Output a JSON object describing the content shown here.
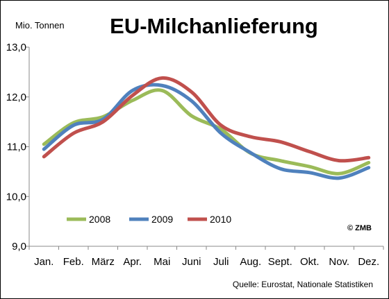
{
  "chart_data": {
    "type": "line",
    "title": "EU-Milchanlieferung",
    "ylabel": "Mio. Tonnen",
    "categories": [
      "Jan.",
      "Feb.",
      "März",
      "Apr.",
      "Mai",
      "Juni",
      "Juli",
      "Aug.",
      "Sept.",
      "Okt.",
      "Nov.",
      "Dez."
    ],
    "ylim": [
      9.0,
      13.0
    ],
    "yticks": [
      "9,0",
      "10,0",
      "11,0",
      "12,0",
      "13,0"
    ],
    "grid": false,
    "legend": "bottom-left",
    "series": [
      {
        "name": "2008",
        "color": "#9bbb59",
        "values": [
          11.05,
          11.48,
          11.6,
          11.93,
          12.13,
          11.62,
          11.35,
          10.87,
          10.72,
          10.6,
          10.46,
          10.68
        ]
      },
      {
        "name": "2009",
        "color": "#4f81bd",
        "values": [
          10.95,
          11.43,
          11.55,
          12.13,
          12.23,
          11.92,
          11.27,
          10.88,
          10.56,
          10.48,
          10.37,
          10.58
        ]
      },
      {
        "name": "2010",
        "color": "#c0504d",
        "values": [
          10.8,
          11.27,
          11.5,
          12.03,
          12.38,
          12.1,
          11.43,
          11.2,
          11.1,
          10.9,
          10.72,
          10.78
        ]
      }
    ],
    "annotation": "© ZMB",
    "source": "Quelle: Eurostat,  Nationale Statistiken"
  }
}
